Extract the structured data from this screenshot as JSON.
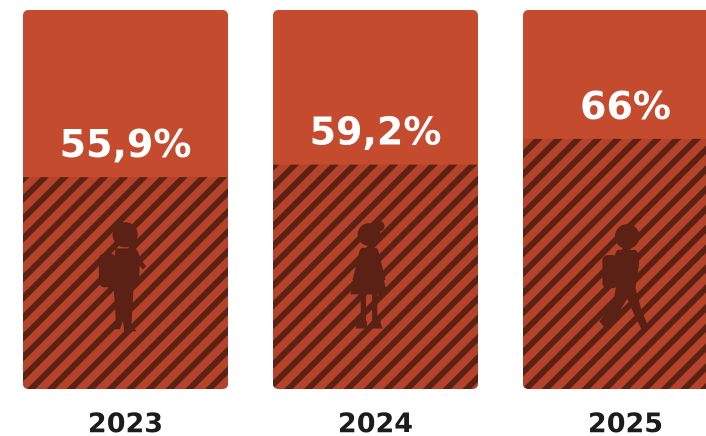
{
  "colors": {
    "bar": "#c44b2d",
    "fill_base": "#b4432a",
    "stripe": "#5a2114",
    "figure": "#5a2114",
    "label": "#ffffff",
    "year": "#1c1c1c"
  },
  "chart_data": {
    "type": "bar",
    "title": "",
    "xlabel": "",
    "ylabel": "",
    "ylim": [
      0,
      100
    ],
    "categories": [
      "2023",
      "2024",
      "2025"
    ],
    "values": [
      55.9,
      59.2,
      66
    ],
    "value_labels": [
      "55,9%",
      "59,2%",
      "66%"
    ],
    "icons": [
      "boy-with-backpack-icon",
      "girl-in-dress-icon",
      "boy-walking-icon"
    ],
    "grid": false,
    "legend": "none"
  }
}
